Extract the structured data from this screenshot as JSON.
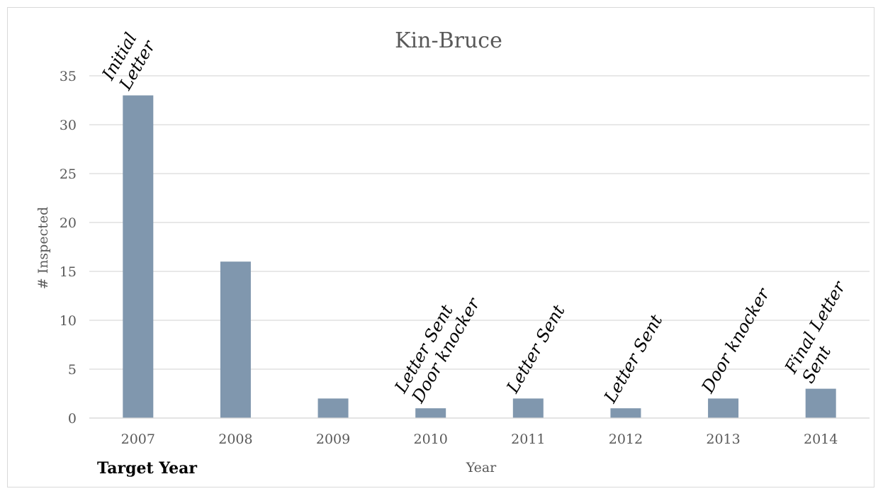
{
  "chart_data": {
    "type": "bar",
    "title": "Kin-Bruce",
    "xlabel": "Year",
    "ylabel": "# Inspected",
    "categories": [
      "2007",
      "2008",
      "2009",
      "2010",
      "2011",
      "2012",
      "2013",
      "2014"
    ],
    "values": [
      33,
      16,
      2,
      1,
      2,
      1,
      2,
      3
    ],
    "ylim": [
      0,
      35
    ],
    "yticks": [
      0,
      5,
      10,
      15,
      20,
      25,
      30,
      35
    ],
    "grid": true,
    "bar_color": "#8097ae",
    "annotations": [
      {
        "category": "2007",
        "lines": [
          "Initial",
          "Letter"
        ]
      },
      {
        "category": "2010",
        "lines": [
          "Letter Sent",
          "Door knocker"
        ]
      },
      {
        "category": "2011",
        "lines": [
          "Letter Sent"
        ]
      },
      {
        "category": "2012",
        "lines": [
          "Letter Sent"
        ]
      },
      {
        "category": "2013",
        "lines": [
          "Door knocker"
        ]
      },
      {
        "category": "2014",
        "lines": [
          "Final Letter",
          "Sent"
        ]
      }
    ]
  },
  "footer_label": "Target Year"
}
